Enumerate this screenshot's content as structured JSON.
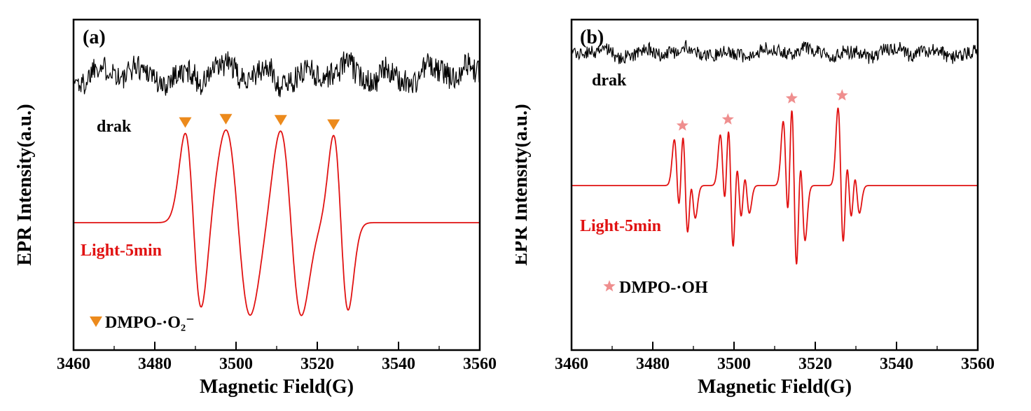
{
  "chart_data": [
    {
      "type": "line",
      "panel_label": "(a)",
      "xlabel": "Magnetic Field(G)",
      "ylabel": "EPR Intensity(a.u.)",
      "xlim": [
        3460,
        3560
      ],
      "xticks": [
        "3460",
        "3480",
        "3500",
        "3520",
        "3540",
        "3560"
      ],
      "x_minor_step": 10,
      "grid": false,
      "legend_position": "bottom-left-inside",
      "series": [
        {
          "name": "drak",
          "kind": "noise",
          "color": "#000000"
        },
        {
          "name": "Light-5min",
          "kind": "epr",
          "color": "#e11212",
          "lines": [
            {
              "center": 3489.5,
              "halfwidth": 2.0,
              "amp": 0.98
            },
            {
              "center": 3500.5,
              "halfwidth": 3.0,
              "amp": 1.02
            },
            {
              "center": 3513.5,
              "halfwidth": 2.6,
              "amp": 1.02
            },
            {
              "center": 3525.8,
              "halfwidth": 1.8,
              "amp": 0.96
            }
          ]
        }
      ],
      "markers": {
        "shape": "triangle-down",
        "color": "#ec8a1c",
        "positions": [
          3487.5,
          3497.5,
          3511,
          3524
        ]
      },
      "legend_label": "DMPO-·O₂⁻"
    },
    {
      "type": "line",
      "panel_label": "(b)",
      "xlabel": "Magnetic Field(G)",
      "ylabel": "EPR Intensity(a.u.)",
      "xlim": [
        3460,
        3560
      ],
      "xticks": [
        "3460",
        "3480",
        "3500",
        "3520",
        "3540",
        "3560"
      ],
      "x_minor_step": 10,
      "grid": false,
      "legend_position": "bottom-left-inside",
      "series": [
        {
          "name": "drak",
          "kind": "noise",
          "color": "#000000"
        },
        {
          "name": "Light-5min",
          "kind": "epr",
          "color": "#e11212",
          "lines": [
            {
              "center": 3486.0,
              "halfwidth": 0.7,
              "amp": 0.5
            },
            {
              "center": 3488.0,
              "halfwidth": 0.7,
              "amp": 0.75
            },
            {
              "center": 3489.8,
              "halfwidth": 0.7,
              "amp": 0.35
            },
            {
              "center": 3497.3,
              "halfwidth": 0.7,
              "amp": 0.55
            },
            {
              "center": 3499.2,
              "halfwidth": 0.7,
              "amp": 0.9
            },
            {
              "center": 3501.2,
              "halfwidth": 0.7,
              "amp": 0.5
            },
            {
              "center": 3503.1,
              "halfwidth": 0.7,
              "amp": 0.3
            },
            {
              "center": 3512.8,
              "halfwidth": 0.7,
              "amp": 0.7
            },
            {
              "center": 3514.8,
              "halfwidth": 0.7,
              "amp": 1.15
            },
            {
              "center": 3516.8,
              "halfwidth": 0.7,
              "amp": 0.6
            },
            {
              "center": 3526.3,
              "halfwidth": 0.7,
              "amp": 0.85
            },
            {
              "center": 3528.3,
              "halfwidth": 0.7,
              "amp": 0.5
            },
            {
              "center": 3530.2,
              "halfwidth": 0.7,
              "amp": 0.3
            }
          ]
        }
      ],
      "markers": {
        "shape": "star",
        "color": "#ef8e8e",
        "positions": [
          3487.3,
          3498.5,
          3514.2,
          3526.6
        ]
      },
      "legend_label": "DMPO-·OH"
    }
  ]
}
